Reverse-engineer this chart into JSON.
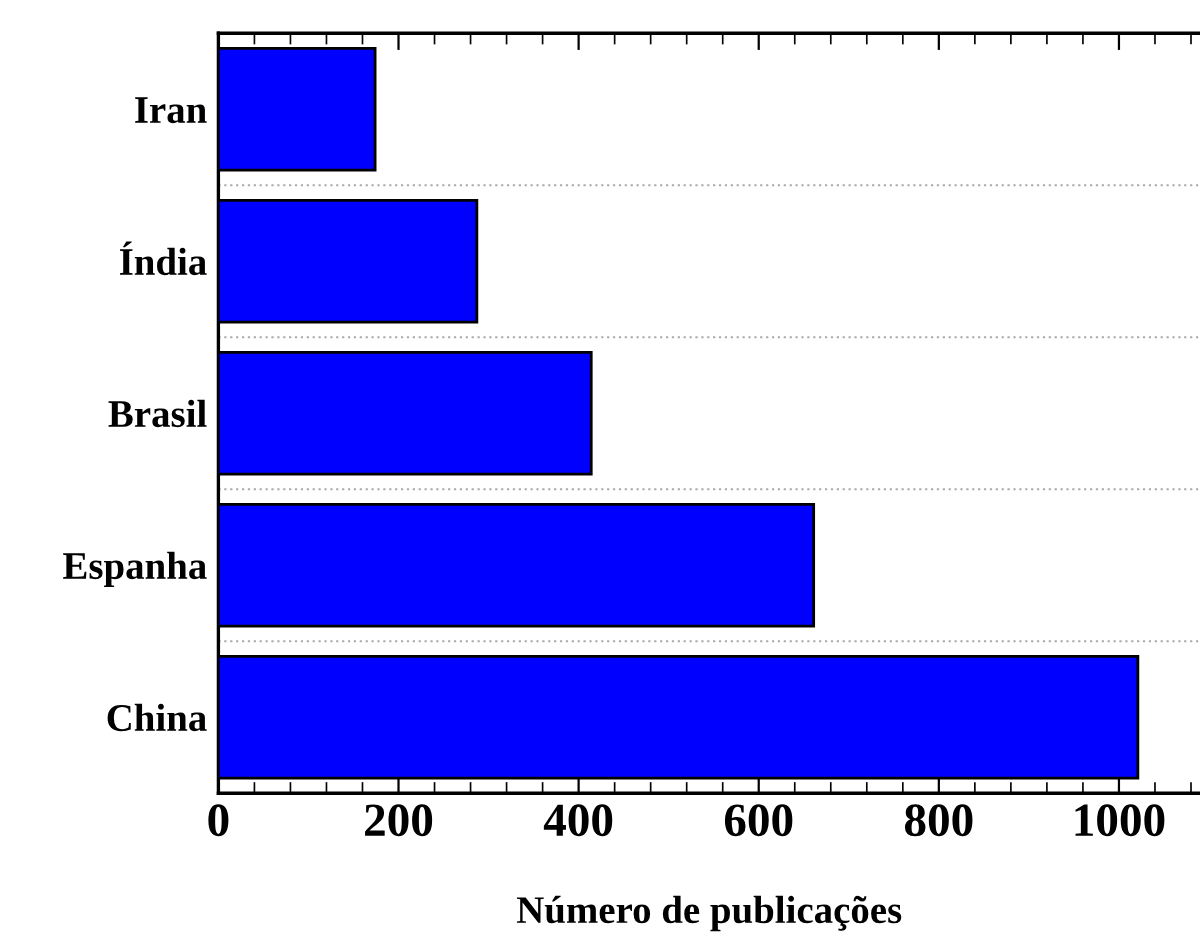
{
  "chart_data": {
    "type": "bar",
    "orientation": "horizontal",
    "xlabel": "Número de publicações",
    "categories": [
      "Iran",
      "Índia",
      "Brasil",
      "Espanha",
      "China"
    ],
    "values": [
      174,
      287,
      414,
      661,
      1021
    ],
    "color": "#0000ff",
    "xlim": [
      0,
      1090
    ],
    "xticks": [
      0,
      200,
      400,
      600,
      800,
      1000
    ],
    "grid": "y"
  }
}
